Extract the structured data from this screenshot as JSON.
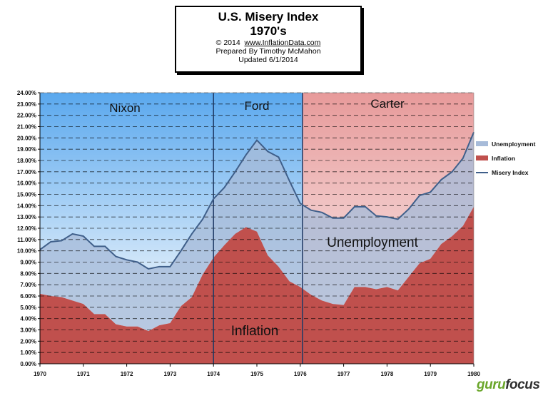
{
  "title": {
    "main": "U.S. Misery Index",
    "sub": "1970's",
    "copyright": "© 2014",
    "url": "www.InflationData.com",
    "prepared": "Prepared  By Timothy McMahon",
    "updated": "Updated  6/1/2014"
  },
  "watermark": {
    "part1": "guru",
    "part2": "focus"
  },
  "colors": {
    "unemployment": "#a7bbd9",
    "inflation": "#c0504d",
    "misery_line": "#3f5f8a",
    "nixon_band": "#5aa8ee",
    "ford_band": "#5aa8ee",
    "carter_band": "#e79a9a",
    "watermark_green": "#6aa62a"
  },
  "chart_data": {
    "type": "area",
    "ylim": [
      0,
      24
    ],
    "y_ticks": [
      "0.00%",
      "1.00%",
      "2.00%",
      "3.00%",
      "4.00%",
      "5.00%",
      "6.00%",
      "7.00%",
      "8.00%",
      "9.00%",
      "10.00%",
      "11.00%",
      "12.00%",
      "13.00%",
      "14.00%",
      "15.00%",
      "16.00%",
      "17.00%",
      "18.00%",
      "19.00%",
      "20.00%",
      "21.00%",
      "22.00%",
      "23.00%",
      "24.00%"
    ],
    "xlim": [
      1970,
      1980
    ],
    "x_ticks": [
      "1970",
      "1971",
      "1972",
      "1973",
      "1974",
      "1975",
      "1976",
      "1977",
      "1978",
      "1979",
      "1980"
    ],
    "grid": "horizontal dashed",
    "legend": "right",
    "legend_entries": [
      "Unemployment",
      "Inflation",
      "Misery Index"
    ],
    "eras": [
      {
        "name": "Nixon",
        "start": 1970.0,
        "end": 1974.0
      },
      {
        "name": "Ford",
        "start": 1974.0,
        "end": 1976.05
      },
      {
        "name": "Carter",
        "start": 1976.05,
        "end": 1980.0
      }
    ],
    "area_labels": {
      "unemployment": "Unemployment",
      "inflation": "Inflation"
    },
    "series": [
      {
        "name": "Inflation",
        "points": [
          [
            1970.0,
            6.2
          ],
          [
            1970.25,
            6.0
          ],
          [
            1970.5,
            5.9
          ],
          [
            1970.75,
            5.6
          ],
          [
            1971.0,
            5.3
          ],
          [
            1971.25,
            4.4
          ],
          [
            1971.5,
            4.4
          ],
          [
            1971.75,
            3.5
          ],
          [
            1972.0,
            3.3
          ],
          [
            1972.25,
            3.3
          ],
          [
            1972.5,
            2.9
          ],
          [
            1972.75,
            3.4
          ],
          [
            1973.0,
            3.6
          ],
          [
            1973.25,
            5.1
          ],
          [
            1973.5,
            5.9
          ],
          [
            1973.75,
            7.9
          ],
          [
            1974.0,
            9.4
          ],
          [
            1974.25,
            10.5
          ],
          [
            1974.5,
            11.5
          ],
          [
            1974.75,
            12.1
          ],
          [
            1975.0,
            11.7
          ],
          [
            1975.25,
            9.6
          ],
          [
            1975.5,
            8.6
          ],
          [
            1975.75,
            7.3
          ],
          [
            1976.0,
            6.8
          ],
          [
            1976.25,
            6.1
          ],
          [
            1976.5,
            5.6
          ],
          [
            1976.75,
            5.3
          ],
          [
            1977.0,
            5.2
          ],
          [
            1977.25,
            6.8
          ],
          [
            1977.5,
            6.8
          ],
          [
            1977.75,
            6.6
          ],
          [
            1978.0,
            6.8
          ],
          [
            1978.25,
            6.5
          ],
          [
            1978.5,
            7.7
          ],
          [
            1978.75,
            8.9
          ],
          [
            1979.0,
            9.3
          ],
          [
            1979.25,
            10.6
          ],
          [
            1979.5,
            11.3
          ],
          [
            1979.75,
            12.2
          ],
          [
            1980.0,
            13.9
          ]
        ]
      },
      {
        "name": "Misery Index",
        "points": [
          [
            1970.0,
            10.1
          ],
          [
            1970.25,
            10.8
          ],
          [
            1970.5,
            10.9
          ],
          [
            1970.75,
            11.5
          ],
          [
            1971.0,
            11.3
          ],
          [
            1971.25,
            10.4
          ],
          [
            1971.5,
            10.4
          ],
          [
            1971.75,
            9.5
          ],
          [
            1972.0,
            9.2
          ],
          [
            1972.25,
            9.0
          ],
          [
            1972.5,
            8.4
          ],
          [
            1972.75,
            8.6
          ],
          [
            1973.0,
            8.6
          ],
          [
            1973.25,
            10.0
          ],
          [
            1973.5,
            11.5
          ],
          [
            1973.75,
            12.8
          ],
          [
            1974.0,
            14.6
          ],
          [
            1974.25,
            15.6
          ],
          [
            1974.5,
            17.0
          ],
          [
            1974.75,
            18.5
          ],
          [
            1975.0,
            19.8
          ],
          [
            1975.25,
            18.8
          ],
          [
            1975.5,
            18.3
          ],
          [
            1975.75,
            16.2
          ],
          [
            1976.0,
            14.2
          ],
          [
            1976.25,
            13.6
          ],
          [
            1976.5,
            13.4
          ],
          [
            1976.75,
            12.9
          ],
          [
            1977.0,
            12.9
          ],
          [
            1977.25,
            13.9
          ],
          [
            1977.5,
            13.9
          ],
          [
            1977.75,
            13.1
          ],
          [
            1978.0,
            13.0
          ],
          [
            1978.25,
            12.8
          ],
          [
            1978.5,
            13.7
          ],
          [
            1978.75,
            14.9
          ],
          [
            1979.0,
            15.2
          ],
          [
            1979.25,
            16.3
          ],
          [
            1979.5,
            17.0
          ],
          [
            1979.75,
            18.2
          ],
          [
            1980.0,
            20.5
          ]
        ]
      }
    ]
  }
}
